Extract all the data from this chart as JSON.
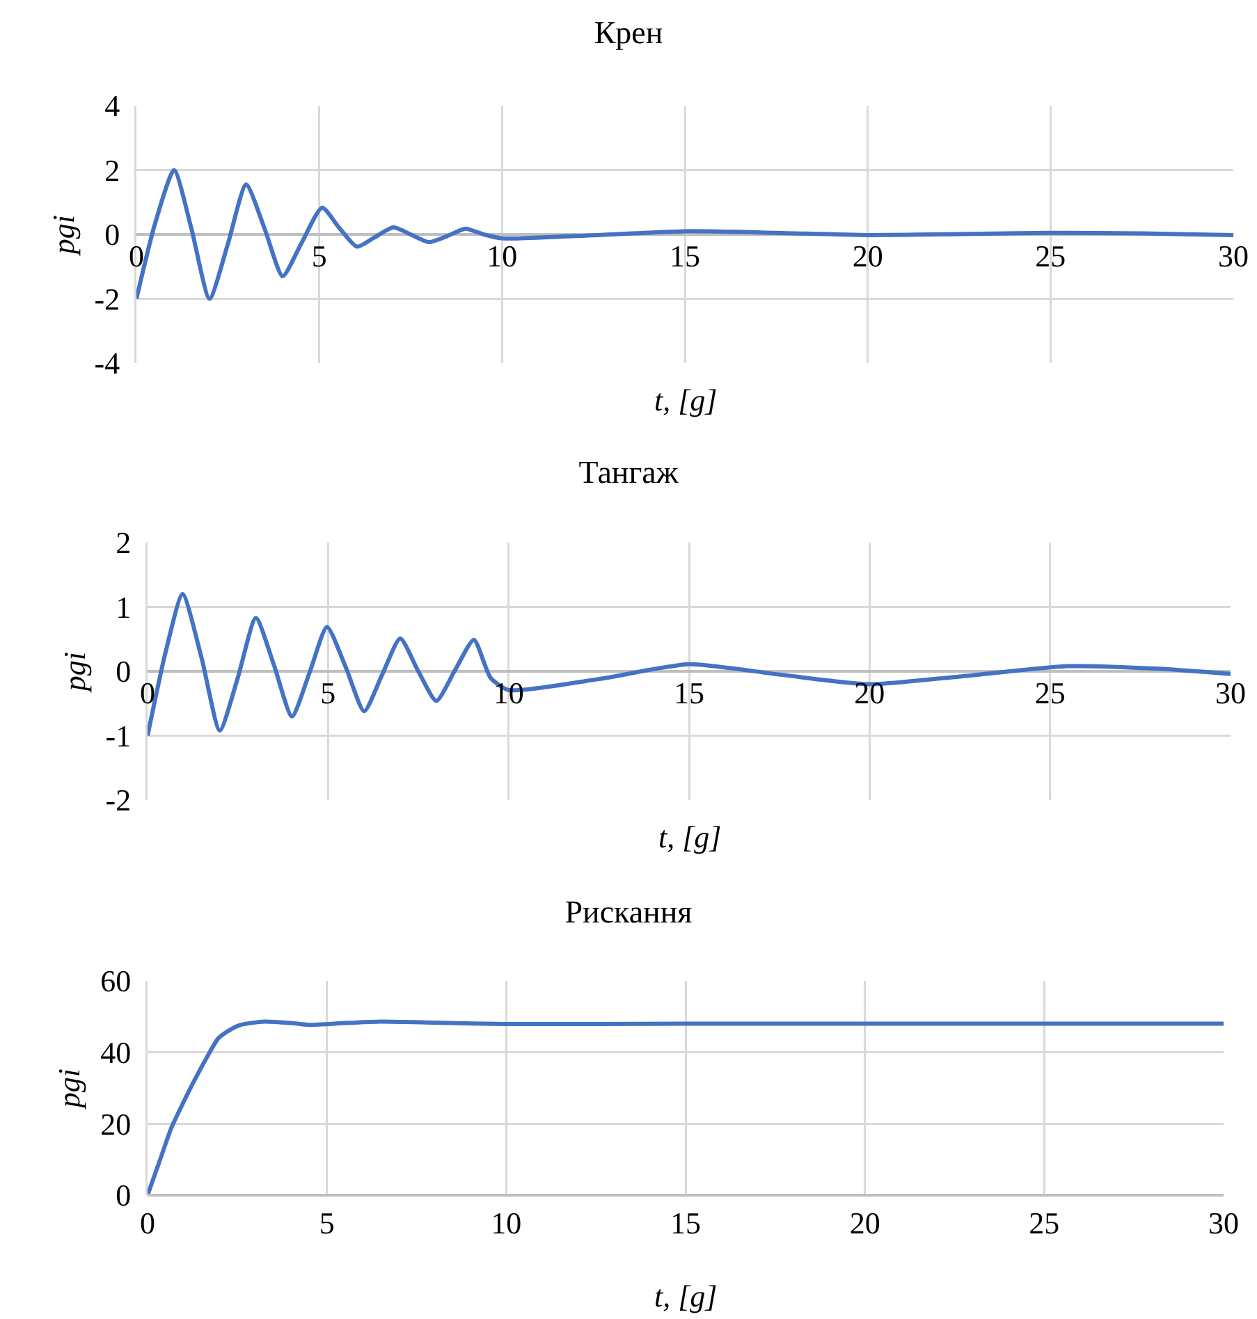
{
  "chart_data": [
    {
      "type": "line",
      "title": "Крен",
      "xlabel": "t, [g]",
      "ylabel": "pgi",
      "xlim": [
        0,
        30
      ],
      "xticks": [
        0,
        5,
        10,
        15,
        20,
        25,
        30
      ],
      "ylim": [
        -4,
        4
      ],
      "yticks": [
        -4,
        -2,
        0,
        2,
        4
      ],
      "grid": true,
      "line_style": "solid",
      "series": [
        {
          "color": "#4472c4",
          "x": [
            0,
            0.5,
            1.03,
            1.5,
            2.0,
            2.5,
            3.0,
            3.5,
            4.0,
            4.5,
            5.08,
            5.55,
            6.03,
            6.5,
            7.03,
            7.5,
            8.0,
            8.5,
            9.0,
            9.5,
            10,
            12,
            15,
            17.5,
            20,
            22.5,
            25,
            27.5,
            30
          ],
          "values": [
            -2.0,
            0.3,
            2.0,
            0.2,
            -2.0,
            -0.3,
            1.55,
            0.2,
            -1.3,
            -0.3,
            0.83,
            0.2,
            -0.38,
            -0.1,
            0.22,
            0.0,
            -0.24,
            -0.05,
            0.18,
            0.0,
            -0.12,
            -0.05,
            0.1,
            0.05,
            -0.02,
            0.01,
            0.05,
            0.03,
            -0.02
          ]
        }
      ]
    },
    {
      "type": "line",
      "title": "Тангаж",
      "xlabel": "t, [g]",
      "ylabel": "pgi",
      "xlim": [
        0,
        30
      ],
      "xticks": [
        0,
        5,
        10,
        15,
        20,
        25,
        30
      ],
      "ylim": [
        -2,
        2
      ],
      "yticks": [
        -2,
        -1,
        0,
        1,
        2
      ],
      "grid": true,
      "line_style": "solid",
      "series": [
        {
          "color": "#4472c4",
          "x": [
            0,
            0.5,
            0.97,
            1.5,
            2.0,
            2.5,
            3.0,
            3.5,
            4.0,
            4.5,
            4.97,
            5.5,
            6.0,
            6.5,
            7.0,
            7.5,
            8.0,
            8.5,
            9.04,
            9.5,
            10.0,
            12.5,
            15,
            17.5,
            20,
            22.5,
            25.5,
            28,
            30
          ],
          "values": [
            -1.0,
            0.3,
            1.2,
            0.2,
            -0.92,
            -0.1,
            0.83,
            0.1,
            -0.7,
            0.0,
            0.69,
            0.05,
            -0.62,
            -0.05,
            0.51,
            0.0,
            -0.46,
            0.0,
            0.49,
            -0.1,
            -0.29,
            -0.12,
            0.11,
            -0.05,
            -0.2,
            -0.08,
            0.08,
            0.04,
            -0.04
          ]
        }
      ]
    },
    {
      "type": "line",
      "title": "Рискання",
      "xlabel": "t, [g]",
      "ylabel": "pgi",
      "xlim": [
        0,
        30
      ],
      "xticks": [
        0,
        5,
        10,
        15,
        20,
        25,
        30
      ],
      "ylim": [
        0,
        60
      ],
      "yticks": [
        0,
        20,
        40,
        60
      ],
      "grid": true,
      "line_style": "solid",
      "series": [
        {
          "color": "#4472c4",
          "x": [
            0,
            0.3,
            0.67,
            1.0,
            1.32,
            1.65,
            1.97,
            2.3,
            2.6,
            3.25,
            4.0,
            4.5,
            5.5,
            6.5,
            8,
            10,
            15,
            20,
            25,
            30
          ],
          "values": [
            0,
            8.5,
            19,
            26,
            32.4,
            38.5,
            43.9,
            46.3,
            47.7,
            48.6,
            48.2,
            47.7,
            48.2,
            48.6,
            48.3,
            47.9,
            48,
            48,
            48,
            48
          ]
        }
      ]
    }
  ]
}
